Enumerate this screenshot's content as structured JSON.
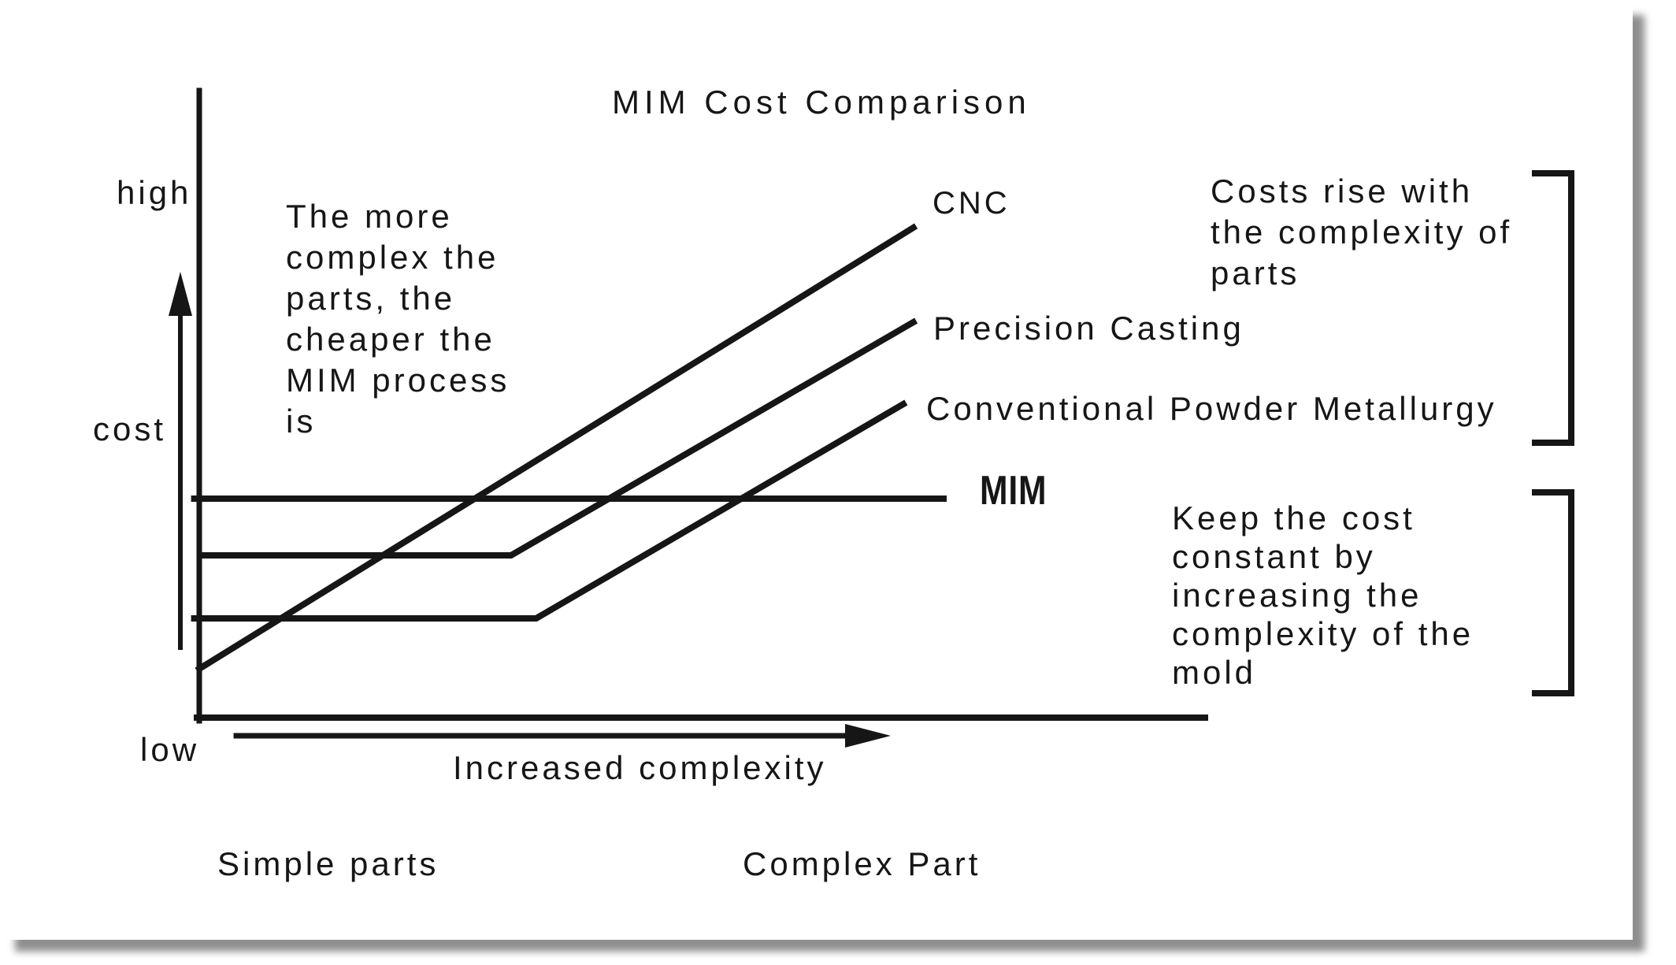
{
  "title": "MIM Cost Comparison",
  "axis_labels": {
    "high": "high",
    "cost": "cost",
    "low": "low",
    "x_arrow": "Increased complexity",
    "x_left": "Simple parts",
    "x_right": "Complex Part"
  },
  "series_labels": {
    "cnc": "CNC",
    "precision": "Precision Casting",
    "conventional": "Conventional Powder Metallurgy",
    "mim": "MIM"
  },
  "notes": {
    "left": "The more\ncomplex the\nparts, the\ncheaper the\nMIM process\nis",
    "right_top": "Costs rise with\nthe complexity of\nparts",
    "right_bottom": "Keep the cost\nconstant by\nincreasing the\ncomplexity of the\nmold"
  },
  "colors": {
    "ink": "#161616",
    "page": "#ffffff",
    "shadow": "#8f8f8f"
  },
  "chart_data": {
    "type": "line",
    "title": "MIM Cost Comparison",
    "xlabel": "Increased complexity",
    "ylabel": "cost",
    "x_range_labels": [
      "Simple parts",
      "Complex Part"
    ],
    "y_range_labels": [
      "low",
      "high"
    ],
    "axes_numeric": false,
    "units": "relative 0-100 (qualitative, no numeric ticks shown)",
    "grid": false,
    "legend_position": "labels at line ends (right side)",
    "series": [
      {
        "name": "CNC",
        "points": [
          [
            0,
            8
          ],
          [
            71,
            78
          ]
        ]
      },
      {
        "name": "Precision Casting",
        "points": [
          [
            0.4,
            26
          ],
          [
            31,
            26
          ],
          [
            71,
            63
          ]
        ]
      },
      {
        "name": "Conventional Powder Metallurgy",
        "points": [
          [
            -0.5,
            16
          ],
          [
            33.5,
            16
          ],
          [
            70,
            50
          ]
        ]
      },
      {
        "name": "MIM",
        "points": [
          [
            -0.5,
            35
          ],
          [
            74,
            35
          ]
        ]
      }
    ],
    "annotations": [
      "The more complex the parts, the cheaper the MIM process is",
      "Costs rise with the complexity of parts",
      "Keep the cost constant by increasing the complexity of the mold"
    ]
  }
}
